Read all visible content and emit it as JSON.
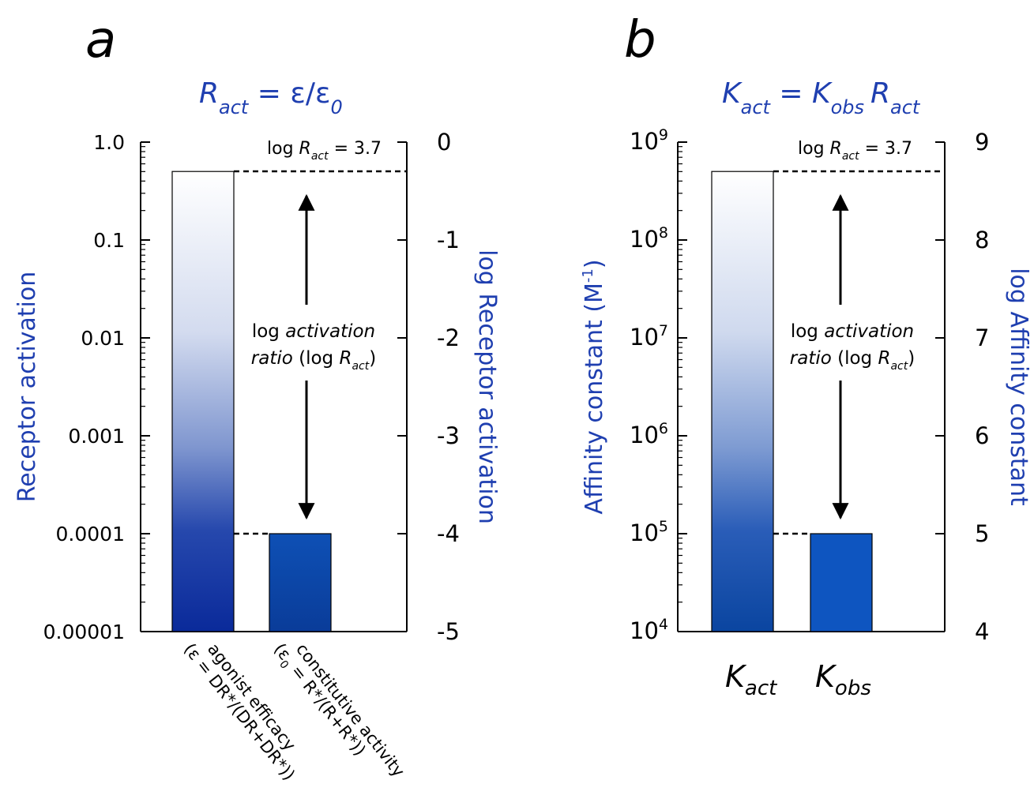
{
  "panels": {
    "a": {
      "label": "a"
    },
    "b": {
      "label": "b"
    }
  },
  "colors": {
    "accent": "#1f3fb0",
    "bar_top": "#ffffff",
    "bar_bottom": "#0a2a9a",
    "bar_const": "#0e4fb0"
  },
  "chart_data": [
    {
      "type": "bar",
      "title": "R_act = ε/ε_0",
      "title_parts": {
        "main": "R",
        "sub": "act",
        "eq": " = ε/ε",
        "sub2": "0"
      },
      "ylabel": "Receptor activation",
      "ylabel_right": "log Receptor activation",
      "yscale": "log",
      "ylim": [
        1e-05,
        1.0
      ],
      "left_ticks": [
        "1.0",
        "0.1",
        "0.01",
        "0.001",
        "0.0001",
        "0.00001"
      ],
      "right_ticks": [
        "0",
        "-1",
        "-2",
        "-3",
        "-4",
        "-5"
      ],
      "categories": [
        {
          "line1": "agonist efficacy",
          "line2": "(ε = DR*/(DR+DR*))"
        },
        {
          "line1": "constitutive activity",
          "line2": "(ε",
          "line2_sub": "0",
          "line2_rest": " = R*/(R+R*))"
        }
      ],
      "values": [
        0.5,
        0.0001
      ],
      "log_values": [
        -0.3,
        -4.0
      ],
      "annotation_top": {
        "prefix": "log ",
        "var": "R",
        "sub": "act",
        "suffix": " = 3.7"
      },
      "arrow_label": {
        "line1_a": "log ",
        "line1_b": "activation",
        "line2_a": "ratio",
        "line2_b": " (log ",
        "line2_c": "R",
        "line2_sub": "act",
        "line2_d": ")"
      }
    },
    {
      "type": "bar",
      "title": "K_act = K_obs R_act",
      "title_parts": {
        "k1": "K",
        "s1": "act",
        "eq": " = ",
        "k2": "K",
        "s2": "obs",
        "k3": "R",
        "s3": "act"
      },
      "ylabel": "Affinity constant (M-1)",
      "ylabel_parts": {
        "main": "Affinity constant (M",
        "sup": "-1",
        "end": ")"
      },
      "ylabel_right": "log Affinity constant",
      "yscale": "log",
      "ylim": [
        10000,
        1000000000
      ],
      "left_ticks": [
        {
          "base": "10",
          "exp": "9"
        },
        {
          "base": "10",
          "exp": "8"
        },
        {
          "base": "10",
          "exp": "7"
        },
        {
          "base": "10",
          "exp": "6"
        },
        {
          "base": "10",
          "exp": "5"
        },
        {
          "base": "10",
          "exp": "4"
        }
      ],
      "right_ticks": [
        "9",
        "8",
        "7",
        "6",
        "5",
        "4"
      ],
      "categories": [
        {
          "k": "K",
          "sub": "act"
        },
        {
          "k": "K",
          "sub": "obs"
        }
      ],
      "values": [
        500000000,
        100000
      ],
      "log_values": [
        8.7,
        5.0
      ],
      "annotation_top": {
        "prefix": "log ",
        "var": "R",
        "sub": "act",
        "suffix": " = 3.7"
      },
      "arrow_label": {
        "line1_a": "log ",
        "line1_b": "activation",
        "line2_a": "ratio",
        "line2_b": " (log ",
        "line2_c": "R",
        "line2_sub": "act",
        "line2_d": ")"
      }
    }
  ]
}
